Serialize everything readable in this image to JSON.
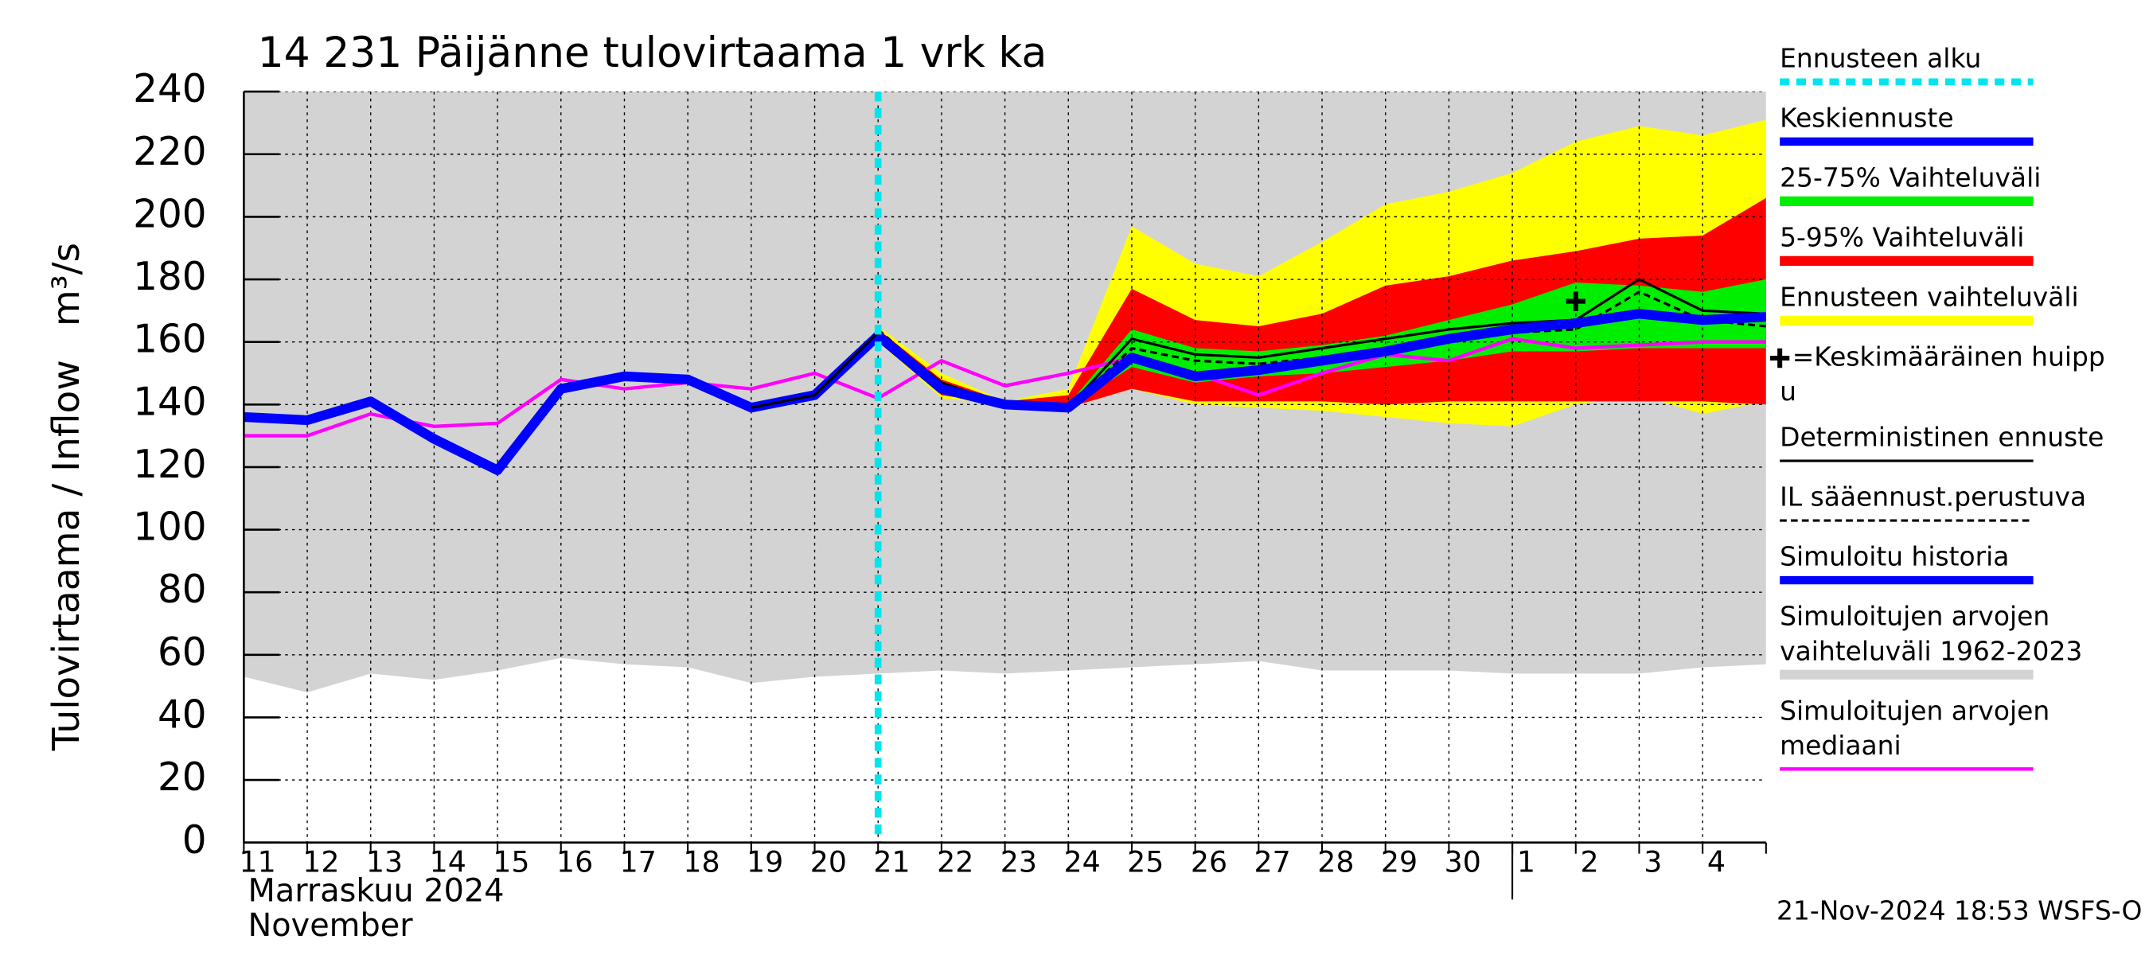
{
  "chart_data": {
    "type": "line",
    "title": "14 231 Päijänne tulovirtaama 1 vrk ka",
    "y_label": "Tulovirtaama / Inflow",
    "y_unit": "m³/s",
    "month_label": "Marraskuu 2024",
    "month_label_en": "November",
    "timestamp": "21-Nov-2024 18:53 WSFS-O",
    "categories": [
      "11",
      "12",
      "13",
      "14",
      "15",
      "16",
      "17",
      "18",
      "19",
      "20",
      "21",
      "22",
      "23",
      "24",
      "25",
      "26",
      "27",
      "28",
      "29",
      "30",
      "1",
      "2",
      "3",
      "4",
      null
    ],
    "ylim": [
      0,
      240
    ],
    "yticks": [
      0,
      20,
      40,
      60,
      80,
      100,
      120,
      140,
      160,
      180,
      200,
      220,
      240
    ],
    "grid": true,
    "forecast_start": {
      "name": "Ennusteen alku",
      "index": 10,
      "color": "#00e5ee"
    },
    "series": [
      {
        "name": [
          "Keskiennuste"
        ],
        "kind": "line",
        "style": "thick",
        "color": "#0000ff",
        "values": [
          null,
          null,
          null,
          null,
          null,
          null,
          null,
          null,
          null,
          null,
          162,
          145,
          140,
          139,
          155,
          149,
          151,
          154,
          157,
          161,
          164,
          166,
          169,
          167,
          168
        ]
      },
      {
        "name": [
          "25-75% Vaihteluväli"
        ],
        "kind": "band",
        "color": "#00ee00",
        "lower": [
          null,
          null,
          null,
          null,
          null,
          null,
          null,
          null,
          null,
          null,
          161,
          145,
          140,
          139,
          152,
          147,
          149,
          150,
          152,
          154,
          157,
          157,
          158,
          158,
          158
        ],
        "upper": [
          null,
          null,
          null,
          null,
          null,
          null,
          null,
          null,
          null,
          null,
          163,
          147,
          140,
          140,
          164,
          158,
          157,
          159,
          162,
          167,
          172,
          179,
          178,
          176,
          180
        ]
      },
      {
        "name": [
          "5-95% Vaihteluväli"
        ],
        "kind": "band",
        "color": "#ff0000",
        "lower": [
          null,
          null,
          null,
          null,
          null,
          null,
          null,
          null,
          null,
          null,
          161,
          143,
          140,
          139,
          145,
          141,
          141,
          141,
          140,
          141,
          141,
          141,
          141,
          141,
          140
        ],
        "upper": [
          null,
          null,
          null,
          null,
          null,
          null,
          null,
          null,
          null,
          null,
          164,
          148,
          141,
          143,
          177,
          167,
          165,
          169,
          178,
          181,
          186,
          189,
          193,
          194,
          206
        ]
      },
      {
        "name": [
          "Ennusteen vaihteluväli"
        ],
        "kind": "band",
        "color": "#ffff00",
        "lower": [
          null,
          null,
          null,
          null,
          null,
          null,
          null,
          null,
          null,
          null,
          160,
          142,
          140,
          139,
          145,
          140,
          139,
          138,
          136,
          134,
          133,
          140,
          143,
          137,
          141
        ],
        "upper": [
          null,
          null,
          null,
          null,
          null,
          null,
          null,
          null,
          null,
          null,
          165,
          150,
          141,
          145,
          197,
          185,
          181,
          192,
          204,
          208,
          214,
          224,
          229,
          226,
          231
        ]
      },
      {
        "name": [
          "=Keskimääräinen huipp",
          "u"
        ],
        "kind": "marker",
        "color": "#000000",
        "values": [
          null,
          null,
          null,
          null,
          null,
          null,
          null,
          null,
          null,
          null,
          null,
          null,
          null,
          null,
          null,
          null,
          null,
          null,
          null,
          null,
          null,
          173,
          null,
          null,
          null
        ]
      },
      {
        "name": [
          "Deterministinen ennuste"
        ],
        "kind": "line",
        "style": "thin",
        "color": "#000000",
        "values": [
          null,
          null,
          null,
          null,
          null,
          null,
          null,
          null,
          139,
          143,
          163,
          147,
          140,
          139,
          161,
          156,
          155,
          158,
          161,
          164,
          166,
          167,
          180,
          170,
          169
        ]
      },
      {
        "name": [
          "IL sääennust.perustuva"
        ],
        "kind": "line",
        "style": "dashed",
        "color": "#000000",
        "values": [
          null,
          null,
          null,
          null,
          null,
          null,
          null,
          null,
          null,
          null,
          164,
          146,
          140,
          139,
          158,
          154,
          153,
          155,
          158,
          161,
          163,
          164,
          176,
          167,
          165
        ]
      },
      {
        "name": [
          "Simuloitu historia"
        ],
        "kind": "line",
        "style": "thick",
        "color": "#0000ff",
        "values": [
          136,
          135,
          141,
          129,
          119,
          145,
          149,
          148,
          139,
          143,
          162,
          null,
          null,
          null,
          null,
          null,
          null,
          null,
          null,
          null,
          null,
          null,
          null,
          null,
          null
        ]
      },
      {
        "name": [
          "Simuloitujen arvojen",
          "vaihteluväli 1962-2023"
        ],
        "kind": "band",
        "color": "#d3d3d3",
        "lower": [
          53,
          48,
          54,
          52,
          55,
          59,
          57,
          56,
          51,
          53,
          54,
          55,
          54,
          55,
          56,
          57,
          58,
          55,
          55,
          55,
          54,
          54,
          54,
          56,
          57
        ],
        "upper": [
          240,
          240,
          240,
          240,
          240,
          240,
          240,
          240,
          240,
          240,
          240,
          240,
          240,
          240,
          240,
          240,
          240,
          240,
          240,
          240,
          240,
          240,
          240,
          240,
          240
        ]
      },
      {
        "name": [
          "Simuloitujen arvojen",
          "mediaani"
        ],
        "kind": "line",
        "style": "medium",
        "color": "#ff00ff",
        "values": [
          130,
          130,
          137,
          133,
          134,
          148,
          145,
          147,
          145,
          150,
          142,
          154,
          146,
          150,
          155,
          150,
          143,
          150,
          156,
          154,
          161,
          158,
          159,
          160,
          160
        ]
      }
    ]
  }
}
